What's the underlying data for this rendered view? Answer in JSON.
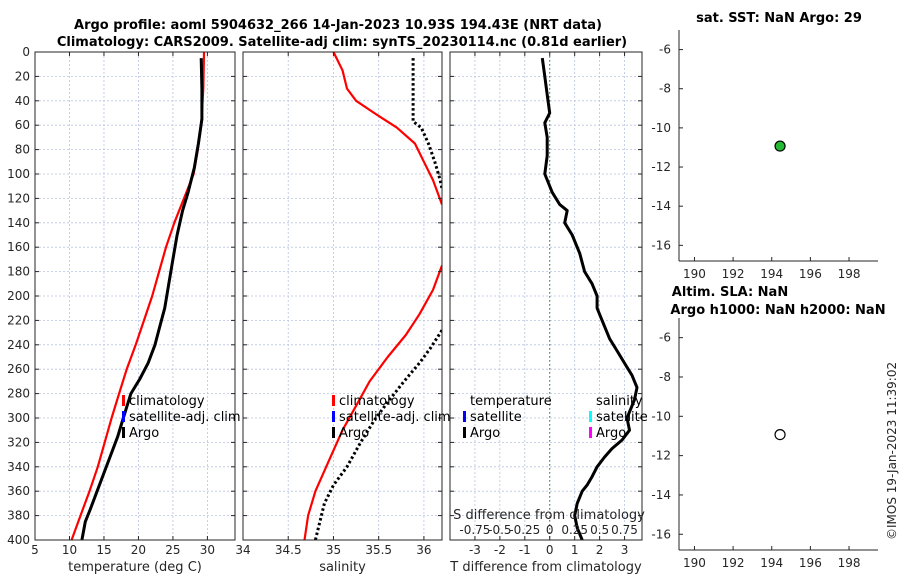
{
  "title": {
    "line1": "Argo profile: aoml 5904632_266 14-Jan-2023 10.93S 194.43E (NRT data)",
    "line2": "Climatology: CARS2009. Satellite-adj clim: synTS_20230114.nc (0.81d earlier)"
  },
  "credit": "©IMOS 19-Jan-2023 11:39:02",
  "colors": {
    "climatology": "#ff0000",
    "satellite": "#0000ff",
    "argo": "#000000",
    "sal_satellite": "#00ffff",
    "sal_argo": "#ff00ff",
    "sst_marker": "#22bb33"
  },
  "chart_data": [
    {
      "type": "line",
      "xlabel": "temperature (deg C)",
      "ylabel": "",
      "xlim": [
        5,
        34
      ],
      "ylim": [
        400,
        0
      ],
      "xticks": [
        5,
        10,
        15,
        20,
        25,
        30
      ],
      "yticks": [
        0,
        20,
        40,
        60,
        80,
        100,
        120,
        140,
        160,
        180,
        200,
        220,
        240,
        260,
        280,
        300,
        320,
        340,
        360,
        380,
        400
      ],
      "legend": [
        "climatology",
        "satellite-adj. clim",
        "Argo"
      ],
      "series": [
        {
          "name": "climatology",
          "style": "solid",
          "color": "#ff0000",
          "points": [
            [
              29.5,
              0
            ],
            [
              29.4,
              30
            ],
            [
              29.1,
              60
            ],
            [
              28.6,
              80
            ],
            [
              28,
              100
            ],
            [
              26.6,
              120
            ],
            [
              25.2,
              140
            ],
            [
              24,
              160
            ],
            [
              23,
              180
            ],
            [
              22,
              200
            ],
            [
              20.8,
              220
            ],
            [
              19.6,
              240
            ],
            [
              18.3,
              260
            ],
            [
              17.2,
              280
            ],
            [
              16.1,
              300
            ],
            [
              15.1,
              320
            ],
            [
              14.1,
              340
            ],
            [
              12.9,
              360
            ],
            [
              11.6,
              380
            ],
            [
              10.3,
              400
            ]
          ]
        },
        {
          "name": "Argo",
          "style": "solid",
          "color": "#000000",
          "points": [
            [
              29.1,
              5
            ],
            [
              29.2,
              30
            ],
            [
              29.2,
              55
            ],
            [
              28.7,
              75
            ],
            [
              28.1,
              95
            ],
            [
              27.2,
              115
            ],
            [
              26.4,
              130
            ],
            [
              25.6,
              150
            ],
            [
              25,
              170
            ],
            [
              24.4,
              190
            ],
            [
              23.8,
              210
            ],
            [
              23.1,
              225
            ],
            [
              22.4,
              240
            ],
            [
              21.4,
              255
            ],
            [
              20.2,
              268
            ],
            [
              18.9,
              280
            ],
            [
              17.8,
              300
            ],
            [
              17,
              315
            ],
            [
              16,
              330
            ],
            [
              15,
              345
            ],
            [
              14,
              360
            ],
            [
              13,
              375
            ],
            [
              12.3,
              385
            ],
            [
              11.8,
              400
            ]
          ]
        }
      ]
    },
    {
      "type": "line",
      "xlabel": "salinity",
      "xlim": [
        34,
        36.2
      ],
      "ylim": [
        400,
        0
      ],
      "xticks": [
        34,
        34.5,
        35,
        35.5,
        36
      ],
      "legend": [
        "climatology",
        "satellite-adj. clim",
        "Argo"
      ],
      "series": [
        {
          "name": "climatology",
          "style": "solid",
          "color": "#ff0000",
          "points": [
            [
              35.0,
              0
            ],
            [
              35.1,
              15
            ],
            [
              35.15,
              30
            ],
            [
              35.25,
              40
            ],
            [
              35.45,
              50
            ],
            [
              35.7,
              62
            ],
            [
              35.9,
              75
            ],
            [
              36.0,
              90
            ],
            [
              36.1,
              105
            ],
            [
              36.2,
              125
            ]
          ],
          "points2": [
            [
              36.2,
              175
            ],
            [
              36.1,
              195
            ],
            [
              35.95,
              215
            ],
            [
              35.8,
              232
            ],
            [
              35.6,
              250
            ],
            [
              35.4,
              270
            ],
            [
              35.25,
              290
            ],
            [
              35.1,
              310
            ],
            [
              34.95,
              335
            ],
            [
              34.8,
              360
            ],
            [
              34.72,
              380
            ],
            [
              34.68,
              400
            ]
          ]
        },
        {
          "name": "Argo",
          "style": "dotted",
          "color": "#000000",
          "points": [
            [
              35.88,
              5
            ],
            [
              35.88,
              30
            ],
            [
              35.88,
              57
            ],
            [
              35.97,
              62
            ],
            [
              36.05,
              75
            ],
            [
              36.12,
              90
            ],
            [
              36.18,
              105
            ],
            [
              36.2,
              112
            ]
          ],
          "points2": [
            [
              36.2,
              228
            ],
            [
              36.08,
              242
            ],
            [
              35.95,
              255
            ],
            [
              35.78,
              270
            ],
            [
              35.6,
              287
            ],
            [
              35.45,
              302
            ],
            [
              35.3,
              320
            ],
            [
              35.15,
              340
            ],
            [
              35.0,
              355
            ],
            [
              34.9,
              370
            ],
            [
              34.85,
              385
            ],
            [
              34.8,
              400
            ]
          ]
        }
      ]
    },
    {
      "type": "line",
      "xlabel": "T difference from climatology",
      "x2label": "S difference from climatology",
      "xlim": [
        -4,
        3.7
      ],
      "ylim": [
        400,
        0
      ],
      "xticks": [
        -3,
        -2,
        -1,
        0,
        1,
        2,
        3
      ],
      "x2ticks": [
        "-0.75",
        "-0.5",
        "-0.25",
        "0",
        "0.25",
        "0.5",
        "0.75"
      ],
      "legend_temperature": {
        "title": "temperature",
        "items": [
          "satellite",
          "Argo"
        ]
      },
      "legend_salinity": {
        "title": "salinity",
        "items": [
          "satellite",
          "Argo"
        ]
      },
      "series": [
        {
          "name": "Argo T difference",
          "style": "solid",
          "color": "#000000",
          "points": [
            [
              -0.3,
              5
            ],
            [
              -0.2,
              20
            ],
            [
              -0.1,
              35
            ],
            [
              0,
              50
            ],
            [
              -0.2,
              58
            ],
            [
              -0.1,
              70
            ],
            [
              -0.1,
              85
            ],
            [
              -0.2,
              100
            ],
            [
              0.1,
              115
            ],
            [
              0.4,
              125
            ],
            [
              0.7,
              130
            ],
            [
              0.6,
              140
            ],
            [
              0.9,
              150
            ],
            [
              1.2,
              165
            ],
            [
              1.4,
              180
            ],
            [
              1.7,
              190
            ],
            [
              1.9,
              200
            ],
            [
              1.9,
              210
            ],
            [
              2.1,
              220
            ],
            [
              2.4,
              235
            ],
            [
              2.7,
              245
            ],
            [
              3.0,
              255
            ],
            [
              3.3,
              265
            ],
            [
              3.5,
              275
            ],
            [
              3.4,
              285
            ],
            [
              3.3,
              290
            ],
            [
              3.1,
              300
            ],
            [
              3.2,
              310
            ],
            [
              2.9,
              318
            ],
            [
              2.5,
              325
            ],
            [
              2.2,
              332
            ],
            [
              1.9,
              340
            ],
            [
              1.7,
              348
            ],
            [
              1.5,
              355
            ],
            [
              1.3,
              360
            ],
            [
              1.1,
              370
            ],
            [
              1.0,
              380
            ],
            [
              1.1,
              390
            ],
            [
              1.3,
              400
            ]
          ]
        }
      ]
    },
    {
      "type": "scatter",
      "title": "sat. SST: NaN Argo: 29",
      "xlim": [
        189.2,
        199.5
      ],
      "ylim": [
        -16.8,
        -5.0
      ],
      "xticks": [
        190,
        192,
        194,
        196,
        198
      ],
      "yticks": [
        -6,
        -8,
        -10,
        -12,
        -14,
        -16
      ],
      "points": [
        {
          "x": 194.43,
          "y": -10.93,
          "fill": "#22bb33"
        }
      ]
    },
    {
      "type": "scatter",
      "title": "Altim. SLA: NaN",
      "title2": "Argo h1000: NaN h2000: NaN",
      "xlim": [
        189.2,
        199.5
      ],
      "ylim": [
        -16.8,
        -5.0
      ],
      "xticks": [
        190,
        192,
        194,
        196,
        198
      ],
      "yticks": [
        -6,
        -8,
        -10,
        -12,
        -14,
        -16
      ],
      "points": [
        {
          "x": 194.43,
          "y": -10.93,
          "fill": "#ffffff"
        }
      ]
    }
  ]
}
